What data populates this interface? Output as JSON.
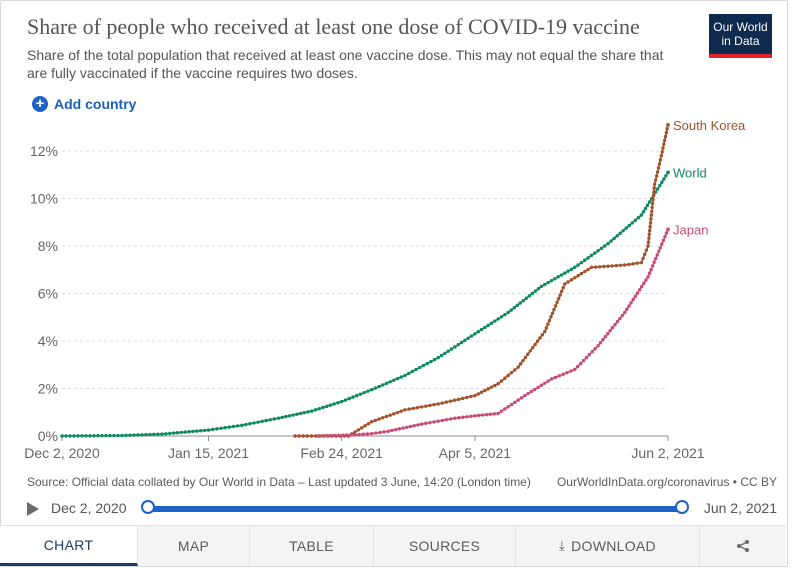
{
  "header": {
    "title": "Share of people who received at least one dose of COVID-19 vaccine",
    "subtitle": "Share of the total population that received at least one vaccine dose. This may not equal the share that are fully vaccinated if the vaccine requires two doses.",
    "logo_line1": "Our World",
    "logo_line2": "in Data"
  },
  "controls": {
    "add_country_label": "Add country"
  },
  "colors": {
    "World": "#0f8a5f",
    "South Korea": "#a2522a",
    "Japan": "#c94b7a",
    "accent": "#1d62c7"
  },
  "chart_data": {
    "type": "line",
    "x_ticks": [
      "Dec 2, 2020",
      "Jan 15, 2021",
      "Feb 24, 2021",
      "Apr 5, 2021",
      "Jun 2, 2021"
    ],
    "y_ticks": [
      "0%",
      "2%",
      "4%",
      "6%",
      "8%",
      "10%",
      "12%"
    ],
    "ylim": [
      0,
      12.8
    ],
    "xlim": [
      "2020-12-02",
      "2021-06-02"
    ],
    "grid": "horizontal-dashed",
    "series": [
      {
        "name": "World",
        "x": [
          "2020-12-02",
          "2020-12-20",
          "2021-01-01",
          "2021-01-15",
          "2021-01-25",
          "2021-02-05",
          "2021-02-15",
          "2021-02-24",
          "2021-03-05",
          "2021-03-15",
          "2021-03-25",
          "2021-04-05",
          "2021-04-15",
          "2021-04-25",
          "2021-05-05",
          "2021-05-15",
          "2021-05-25",
          "2021-06-02"
        ],
        "values": [
          0,
          0.02,
          0.08,
          0.25,
          0.45,
          0.75,
          1.05,
          1.45,
          1.95,
          2.55,
          3.3,
          4.3,
          5.2,
          6.3,
          7.1,
          8.1,
          9.3,
          11.1
        ]
      },
      {
        "name": "South Korea",
        "x": [
          "2021-02-10",
          "2021-02-26",
          "2021-03-05",
          "2021-03-15",
          "2021-03-25",
          "2021-04-05",
          "2021-04-12",
          "2021-04-18",
          "2021-04-26",
          "2021-05-02",
          "2021-05-10",
          "2021-05-20",
          "2021-05-25",
          "2021-05-27",
          "2021-05-29",
          "2021-05-31",
          "2021-06-02"
        ],
        "values": [
          0,
          0,
          0.6,
          1.1,
          1.35,
          1.7,
          2.2,
          2.9,
          4.4,
          6.4,
          7.1,
          7.2,
          7.3,
          8.0,
          10.6,
          11.8,
          13.1
        ]
      },
      {
        "name": "Japan",
        "x": [
          "2021-02-17",
          "2021-02-28",
          "2021-03-05",
          "2021-03-10",
          "2021-03-20",
          "2021-03-30",
          "2021-04-05",
          "2021-04-12",
          "2021-04-20",
          "2021-04-28",
          "2021-05-05",
          "2021-05-12",
          "2021-05-20",
          "2021-05-27",
          "2021-06-02"
        ],
        "values": [
          0,
          0.05,
          0.1,
          0.2,
          0.5,
          0.75,
          0.85,
          0.95,
          1.7,
          2.4,
          2.8,
          3.8,
          5.2,
          6.7,
          8.7
        ]
      }
    ]
  },
  "footer": {
    "source": "Source: Official data collated by Our World in Data – Last updated 3 June, 14:20 (London time)",
    "credit": "OurWorldInData.org/coronavirus • CC BY"
  },
  "timeline": {
    "start": "Dec 2, 2020",
    "end": "Jun 2, 2021"
  },
  "tabs": [
    "CHART",
    "MAP",
    "TABLE",
    "SOURCES",
    "DOWNLOAD"
  ]
}
